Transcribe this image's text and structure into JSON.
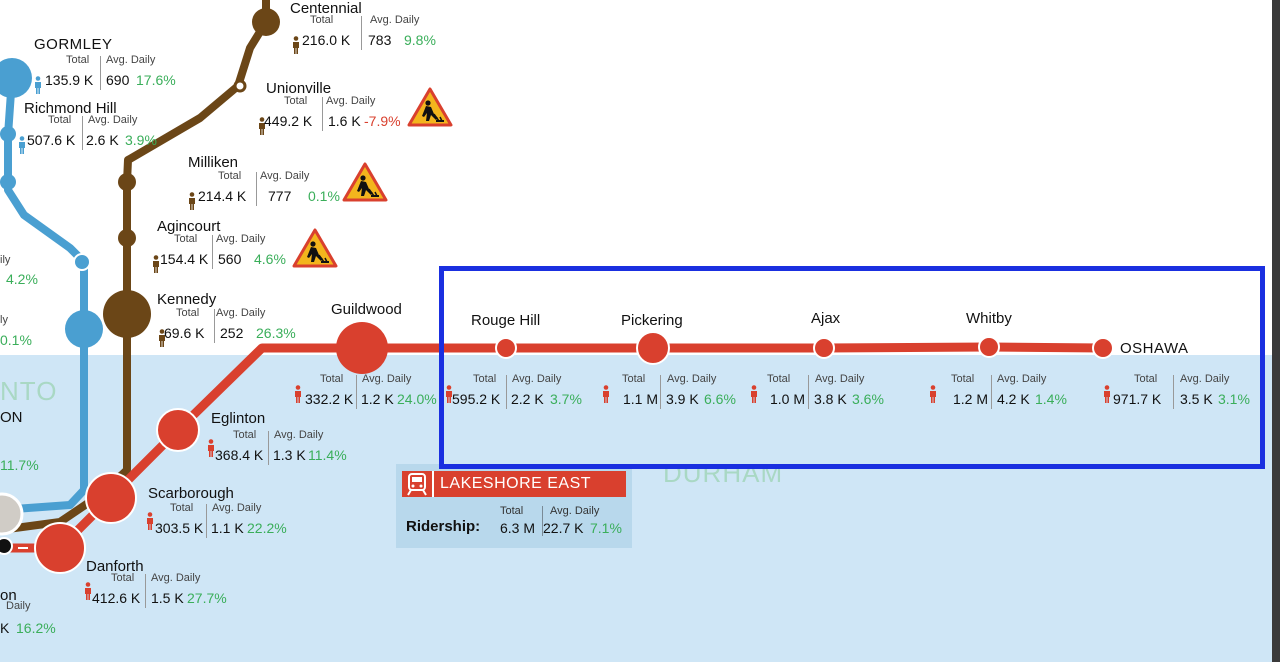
{
  "regions": {
    "toronto_fragment": "NTO",
    "durham": "DURHAM"
  },
  "labels": {
    "total": "Total",
    "avg_daily": "Avg. Daily"
  },
  "colors": {
    "lakeshore_east": "#d9402e",
    "stouffville": "#6b4617",
    "richmond_hill": "#4a9fd1",
    "lake": "#cfe6f6",
    "positive": "#3aae5a",
    "negative": "#d9402e",
    "highlight_box": "#1a2fe0"
  },
  "stations": {
    "centennial": {
      "name": "Centennial",
      "total": "216.0 K",
      "avg": "783",
      "pct": "9.8%"
    },
    "gormley": {
      "name": "GORMLEY",
      "total": "135.9 K",
      "avg": "690",
      "pct": "17.6%"
    },
    "unionville": {
      "name": "Unionville",
      "total": "449.2 K",
      "avg": "1.6 K",
      "pct": "-7.9%"
    },
    "richmond_hill": {
      "name": "Richmond Hill",
      "total": "507.6 K",
      "avg": "2.6 K",
      "pct": "3.9%"
    },
    "milliken": {
      "name": "Milliken",
      "total": "214.4 K",
      "avg": "777",
      "pct": "0.1%"
    },
    "agincourt": {
      "name": "Agincourt",
      "total": "154.4 K",
      "avg": "560",
      "pct": "4.6%"
    },
    "kennedy": {
      "name": "Kennedy",
      "total": "69.6 K",
      "avg": "252",
      "pct": "26.3%"
    },
    "guildwood": {
      "name": "Guildwood",
      "total": "332.2 K",
      "avg": "1.2 K",
      "pct": "24.0%"
    },
    "rouge_hill": {
      "name": "Rouge Hill",
      "total": "595.2 K",
      "avg": "2.2 K",
      "pct": "3.7%"
    },
    "pickering": {
      "name": "Pickering",
      "total": "1.1 M",
      "avg": "3.9 K",
      "pct": "6.6%"
    },
    "ajax": {
      "name": "Ajax",
      "total": "1.0 M",
      "avg": "3.8 K",
      "pct": "3.6%"
    },
    "whitby": {
      "name": "Whitby",
      "total": "1.2 M",
      "avg": "4.2 K",
      "pct": "1.4%"
    },
    "oshawa": {
      "name": "OSHAWA",
      "total": "971.7 K",
      "avg": "3.5 K",
      "pct": "3.1%"
    },
    "eglinton": {
      "name": "Eglinton",
      "total": "368.4 K",
      "avg": "1.3 K",
      "pct": "11.4%"
    },
    "scarborough": {
      "name": "Scarborough",
      "total": "303.5 K",
      "avg": "1.1 K",
      "pct": "22.2%"
    },
    "danforth": {
      "name": "Danforth",
      "total": "412.6 K",
      "avg": "1.5 K",
      "pct": "27.7%"
    }
  },
  "edge_fragments": {
    "left_upper_label": "ily",
    "left_upper_pct": "4.2%",
    "left_mid_label": "ly",
    "left_mid_pct": "0.1%",
    "left_on": "ON",
    "left_pct3": "11.7%",
    "bottom_on": "on",
    "bottom_label": "Daily",
    "bottom_value": "K",
    "bottom_pct": "16.2%"
  },
  "construction_icons": [
    "construction-warning-icon",
    "construction-warning-icon",
    "construction-warning-icon"
  ],
  "legend": {
    "line_name": "LAKESHORE EAST",
    "ridership_label": "Ridership:",
    "total": "6.3 M",
    "avg": "22.7 K",
    "pct": "7.1%"
  }
}
